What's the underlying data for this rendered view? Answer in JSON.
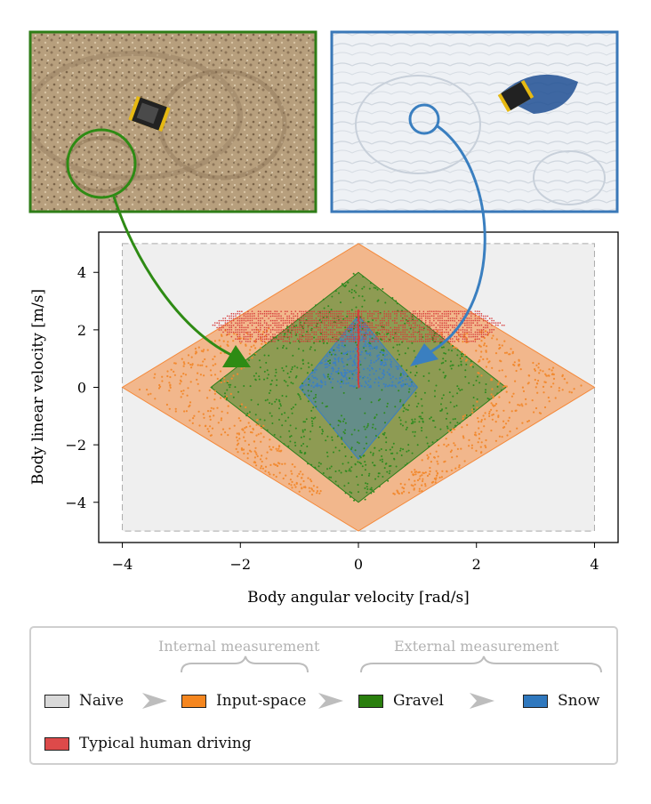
{
  "chart_data": {
    "type": "scatter",
    "xlabel": "Body angular velocity [rad/s]",
    "ylabel": "Body linear velocity [m/s]",
    "xlim": [
      -4.4,
      4.4
    ],
    "ylim": [
      -5.4,
      5.4
    ],
    "xticks": [
      -4,
      -2,
      0,
      2,
      4
    ],
    "yticks": [
      -4,
      -2,
      0,
      2,
      4
    ],
    "grid": false,
    "regions": [
      {
        "name": "Naive",
        "shape": "rectangle",
        "x_range": [
          -4,
          4
        ],
        "y_range": [
          -5,
          5
        ],
        "color": "#d9d9d9"
      },
      {
        "name": "Input-space",
        "shape": "diamond",
        "x_range": [
          -4,
          4
        ],
        "y_range": [
          -5,
          5
        ],
        "color": "#f4893a"
      },
      {
        "name": "Gravel",
        "shape": "diamond",
        "x_range": [
          -2.5,
          2.5
        ],
        "y_range": [
          -4,
          4
        ],
        "color": "#2a7f1a"
      },
      {
        "name": "Snow",
        "shape": "diamond",
        "x_range": [
          -1,
          1
        ],
        "y_range": [
          -2.5,
          2.5
        ],
        "color": "#3a7fc0"
      }
    ],
    "point_clouds": [
      {
        "name": "Input-space",
        "color": "#f28a30",
        "x_range": [
          -4.0,
          4.0
        ],
        "y_range": [
          -3.7,
          2.0
        ]
      },
      {
        "name": "Gravel",
        "color": "#2e8b1f",
        "x_range": [
          -2.5,
          2.5
        ],
        "y_range": [
          -4.1,
          4.1
        ]
      },
      {
        "name": "Snow",
        "color": "#3b7fc4",
        "x_range": [
          -1.0,
          1.0
        ],
        "y_range": [
          0.0,
          2.4
        ]
      },
      {
        "name": "Typical human driving",
        "color": "#d63a3a",
        "x_range": [
          -2.5,
          2.5
        ],
        "y_range": [
          0.0,
          2.7
        ]
      }
    ]
  },
  "photos": {
    "gravel": {
      "border_color": "#2e7d17",
      "depicts": "robot on gravel"
    },
    "snow": {
      "border_color": "#3a78b8",
      "depicts": "robot on snow"
    }
  },
  "legend": {
    "group_internal": "Internal  measurement",
    "group_external": "External measurement",
    "items": [
      {
        "label": "Naive",
        "color": "#d9d9d9"
      },
      {
        "label": "Input-space",
        "color": "#f5861f"
      },
      {
        "label": "Gravel",
        "color": "#2a7f0e"
      },
      {
        "label": "Snow",
        "color": "#2f78be"
      },
      {
        "label": "Typical human driving",
        "color": "#dd4a4a"
      }
    ]
  },
  "colors": {
    "arrow_green": "#2e8b14",
    "arrow_blue": "#3a7fc0",
    "chevron": "#bdbdbd"
  }
}
